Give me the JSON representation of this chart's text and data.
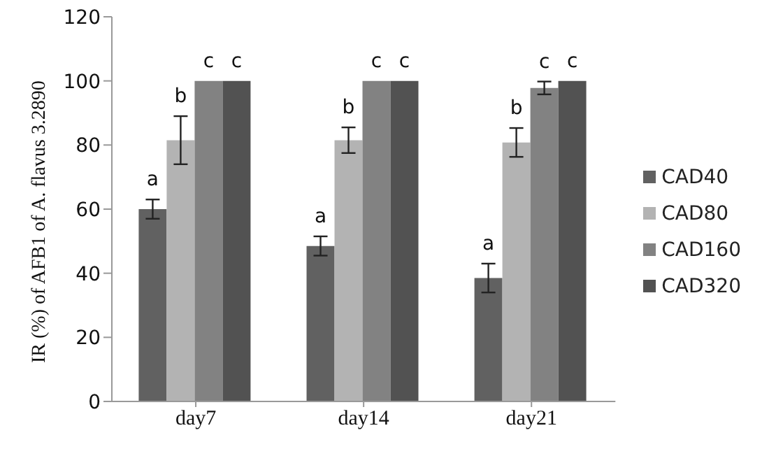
{
  "chart_data": {
    "type": "bar",
    "ylabel": "IR (%) of AFB1 of A. flavus 3.2890",
    "categories": [
      "day7",
      "day14",
      "day21"
    ],
    "series": [
      {
        "name": "CAD40",
        "color": "#616161",
        "values": [
          60,
          48.5,
          38.5
        ],
        "errors": [
          3,
          3,
          4.5
        ],
        "value_labels": [
          "a",
          "a",
          "a"
        ]
      },
      {
        "name": "CAD80",
        "color": "#b3b3b3",
        "values": [
          81.5,
          81.5,
          80.8
        ],
        "errors": [
          7.5,
          4,
          4.5
        ],
        "value_labels": [
          "b",
          "b",
          "b"
        ]
      },
      {
        "name": "CAD160",
        "color": "#828282",
        "values": [
          100,
          100,
          97.8
        ],
        "errors": [
          0,
          0,
          2
        ],
        "value_labels": [
          "c",
          "c",
          "c"
        ]
      },
      {
        "name": "CAD320",
        "color": "#525252",
        "values": [
          100,
          100,
          100
        ],
        "errors": [
          0,
          0,
          0
        ],
        "value_labels": [
          "c",
          "c",
          "c"
        ]
      }
    ],
    "ylim": [
      0,
      120
    ],
    "yticks": [
      0,
      20,
      40,
      60,
      80,
      100,
      120
    ],
    "legend": "right",
    "grid": false
  }
}
